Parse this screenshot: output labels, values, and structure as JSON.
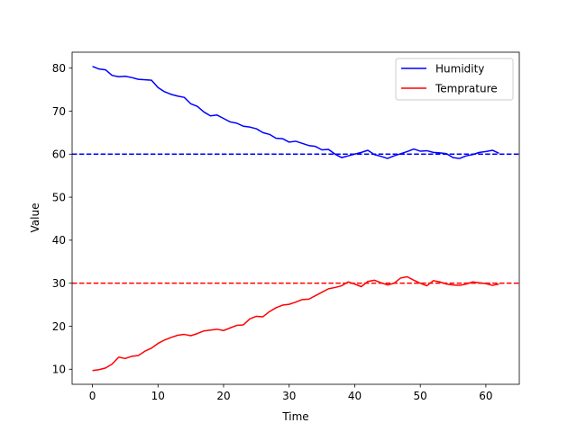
{
  "chart_data": {
    "type": "line",
    "xlabel": "Time",
    "ylabel": "Value",
    "xlim": [
      -3.1,
      65.1
    ],
    "ylim": [
      6.5,
      83.7
    ],
    "xticks": [
      0,
      10,
      20,
      30,
      40,
      50,
      60
    ],
    "yticks": [
      10,
      20,
      30,
      40,
      50,
      60,
      70,
      80
    ],
    "grid": false,
    "legend": "top-right",
    "x": [
      0,
      1,
      2,
      3,
      4,
      5,
      6,
      7,
      8,
      9,
      10,
      11,
      12,
      13,
      14,
      15,
      16,
      17,
      18,
      19,
      20,
      21,
      22,
      23,
      24,
      25,
      26,
      27,
      28,
      29,
      30,
      31,
      32,
      33,
      34,
      35,
      36,
      37,
      38,
      39,
      40,
      41,
      42,
      43,
      44,
      45,
      46,
      47,
      48,
      49,
      50,
      51,
      52,
      53,
      54,
      55,
      56,
      57,
      58,
      59,
      60,
      61,
      62
    ],
    "series": [
      {
        "name": "Humidity",
        "color": "#0000ff",
        "values": [
          80.4,
          79.8,
          79.6,
          78.3,
          78.0,
          78.1,
          77.8,
          77.4,
          77.3,
          77.2,
          75.5,
          74.5,
          73.9,
          73.5,
          73.2,
          71.7,
          71.1,
          69.8,
          68.9,
          69.1,
          68.3,
          67.5,
          67.2,
          66.5,
          66.3,
          65.9,
          65.0,
          64.6,
          63.7,
          63.6,
          62.8,
          63.0,
          62.5,
          62.0,
          61.8,
          61.0,
          61.1,
          60.0,
          59.2,
          59.6,
          60.0,
          60.4,
          60.9,
          59.9,
          59.5,
          59.0,
          59.6,
          60.1,
          60.6,
          61.2,
          60.7,
          60.8,
          60.4,
          60.3,
          60.1,
          59.2,
          59.0,
          59.6,
          59.9,
          60.4,
          60.6,
          60.9,
          60.2
        ]
      },
      {
        "name": "Temprature",
        "color": "#ff0000",
        "values": [
          9.7,
          9.9,
          10.3,
          11.2,
          12.8,
          12.5,
          13.0,
          13.2,
          14.2,
          14.9,
          16.0,
          16.8,
          17.4,
          17.9,
          18.1,
          17.8,
          18.3,
          18.9,
          19.1,
          19.3,
          19.0,
          19.6,
          20.2,
          20.3,
          21.7,
          22.3,
          22.2,
          23.4,
          24.3,
          24.9,
          25.1,
          25.6,
          26.2,
          26.3,
          27.1,
          27.9,
          28.7,
          29.0,
          29.4,
          30.3,
          29.8,
          29.2,
          30.4,
          30.7,
          30.1,
          29.6,
          30.0,
          31.2,
          31.5,
          30.7,
          30.0,
          29.4,
          30.6,
          30.3,
          29.8,
          29.6,
          29.5,
          29.8,
          30.3,
          30.1,
          29.9,
          29.5,
          29.8
        ]
      }
    ],
    "hlines": [
      {
        "y": 60,
        "color": "#0000ff",
        "style": "dashed"
      },
      {
        "y": 30,
        "color": "#ff0000",
        "style": "dashed"
      }
    ]
  }
}
